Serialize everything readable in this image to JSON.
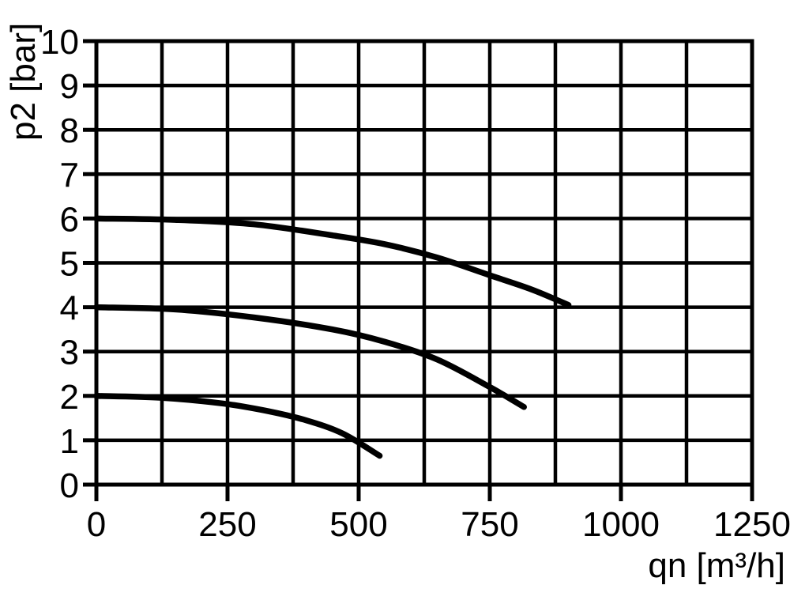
{
  "figure": {
    "background": "#ffffff",
    "ink": "#000000"
  },
  "chart_data": {
    "type": "line",
    "title": "",
    "xlabel": "qn [m³/h]",
    "ylabel": "p2 [bar]",
    "xlim": [
      0,
      1250
    ],
    "ylim": [
      0,
      10
    ],
    "x_tick_values": [
      0,
      250,
      500,
      750,
      1000,
      1250
    ],
    "x_tick_labels": [
      "0",
      "250",
      "500",
      "750",
      "1000",
      "1250"
    ],
    "y_tick_values": [
      0,
      1,
      2,
      3,
      4,
      5,
      6,
      7,
      8,
      9,
      10
    ],
    "y_tick_labels": [
      "0",
      "1",
      "2",
      "3",
      "4",
      "5",
      "6",
      "7",
      "8",
      "9",
      "10"
    ],
    "x_grid_step": 125,
    "y_grid_step": 1,
    "grid": "both",
    "legend_position": "none",
    "line_color": "#000000",
    "series": [
      {
        "points": [
          [
            0,
            6.0
          ],
          [
            150,
            5.97
          ],
          [
            300,
            5.87
          ],
          [
            450,
            5.62
          ],
          [
            550,
            5.42
          ],
          [
            650,
            5.12
          ],
          [
            750,
            4.72
          ],
          [
            830,
            4.4
          ],
          [
            900,
            4.05
          ]
        ]
      },
      {
        "points": [
          [
            0,
            4.0
          ],
          [
            150,
            3.95
          ],
          [
            300,
            3.77
          ],
          [
            450,
            3.5
          ],
          [
            550,
            3.22
          ],
          [
            650,
            2.82
          ],
          [
            750,
            2.2
          ],
          [
            815,
            1.75
          ]
        ]
      },
      {
        "points": [
          [
            0,
            2.0
          ],
          [
            120,
            1.96
          ],
          [
            240,
            1.83
          ],
          [
            330,
            1.65
          ],
          [
            400,
            1.45
          ],
          [
            470,
            1.15
          ],
          [
            540,
            0.65
          ]
        ]
      }
    ]
  }
}
